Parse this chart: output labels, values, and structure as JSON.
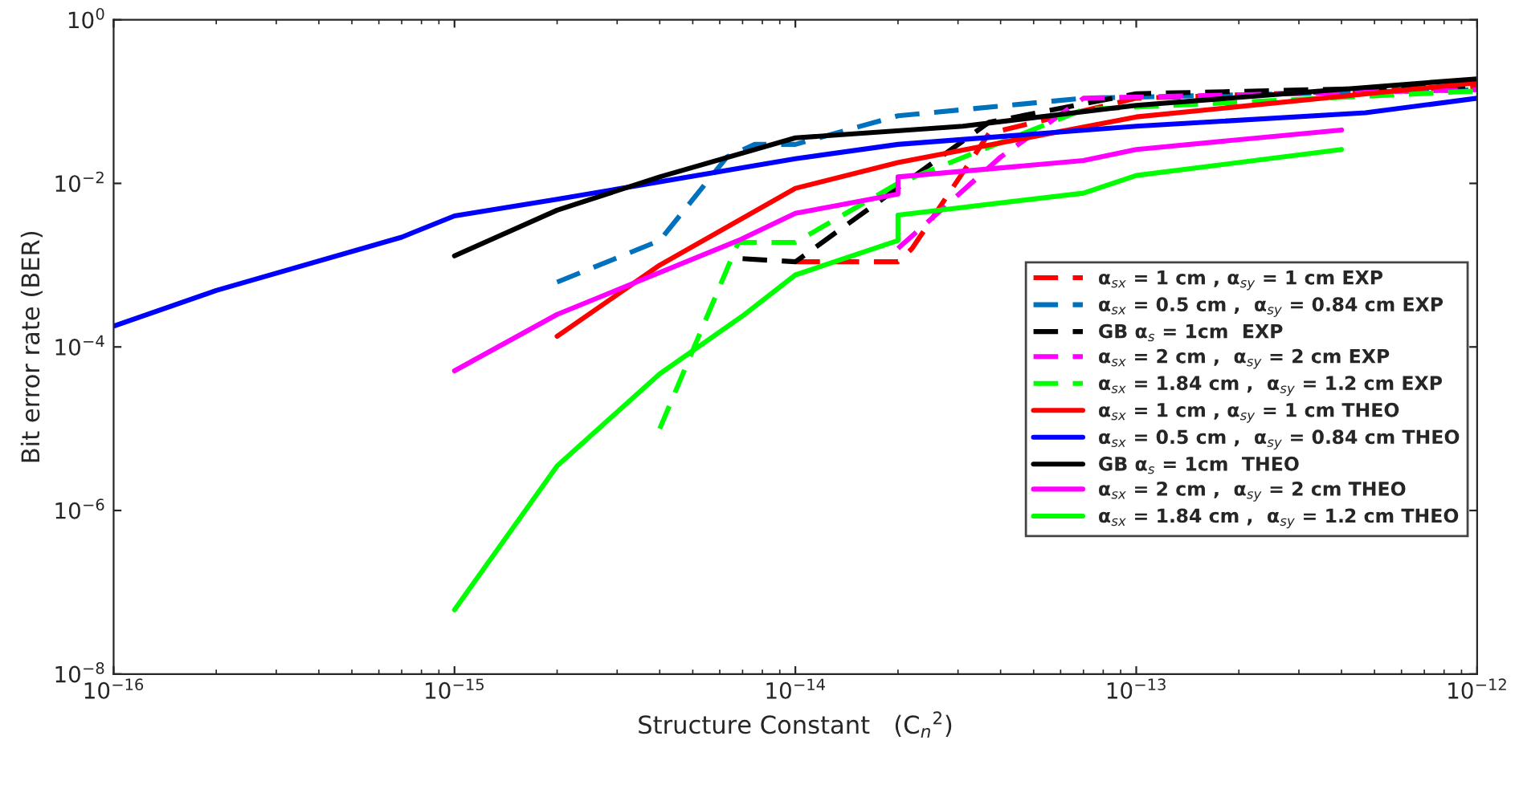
{
  "chart_data": {
    "type": "line",
    "xlabel": "Structure Constant   (C$_{n}$$^{2}$)",
    "ylabel": "Bit error rate (BER)",
    "log": "xy",
    "grid": false,
    "legend": "right",
    "marker": "none",
    "xlim": [
      1e-16,
      1e-12
    ],
    "ylim": [
      1e-08,
      1
    ],
    "xticks": [
      {
        "value": 1e-16,
        "label": "10$^{−16}$"
      },
      {
        "value": 1e-15,
        "label": "10$^{−15}$"
      },
      {
        "value": 1e-14,
        "label": "10$^{−14}$"
      },
      {
        "value": 1e-13,
        "label": "10$^{−13}$"
      },
      {
        "value": 1e-12,
        "label": "10$^{−12}$"
      }
    ],
    "yticks": [
      {
        "value": 1e-08,
        "label": "10$^{−8}$"
      },
      {
        "value": 1e-06,
        "label": "10$^{−6}$"
      },
      {
        "value": 0.0001,
        "label": "10$^{−4}$"
      },
      {
        "value": 0.01,
        "label": "10$^{−2}$"
      },
      {
        "value": 1,
        "label": "10$^{0}$"
      }
    ],
    "series": [
      {
        "name": "α$_{sx}$ = 1 cm , α$_{sy}$ = 1 cm EXP",
        "color": "#ff0000",
        "line_style": "dashed",
        "x": [
          1e-14,
          2e-14,
          2.2e-14,
          3.7e-14,
          1e-13,
          1e-12
        ],
        "values": [
          0.0011,
          0.0011,
          0.0016,
          0.041,
          0.11,
          0.15
        ]
      },
      {
        "name": "α$_{sx}$ = 0.5 cm ,  α$_{sy}$ = 0.84 cm EXP",
        "color": "#0072bd",
        "line_style": "dashed",
        "x": [
          2e-15,
          4e-15,
          6.3e-15,
          7.6e-15,
          1e-14,
          2e-14,
          7e-14,
          1e-12
        ],
        "values": [
          0.00062,
          0.002,
          0.021,
          0.03,
          0.03,
          0.067,
          0.11,
          0.14
        ]
      },
      {
        "name": "GB α$_{s}$ = 1cm  EXP",
        "color": "#000000",
        "line_style": "dashed",
        "x": [
          7e-15,
          1e-14,
          3.7e-14,
          1e-13,
          1e-12
        ],
        "values": [
          0.0012,
          0.0011,
          0.056,
          0.125,
          0.155
        ]
      },
      {
        "name": "α$_{sx}$ = 2 cm ,  α$_{sy}$ = 2 cm EXP",
        "color": "#ff00ff",
        "line_style": "dashed",
        "x": [
          2e-14,
          4e-14,
          7e-14,
          1e-12
        ],
        "values": [
          0.0016,
          0.021,
          0.11,
          0.14
        ]
      },
      {
        "name": "α$_{sx}$ = 1.84 cm ,  α$_{sy}$ = 1.2 cm EXP",
        "color": "#00ff00",
        "line_style": "dashed",
        "x": [
          4e-15,
          6.8e-15,
          1e-14,
          2e-14,
          7e-14,
          1e-12
        ],
        "values": [
          1e-05,
          0.0019,
          0.0019,
          0.01,
          0.08,
          0.135
        ]
      },
      {
        "name": "α$_{sx}$ = 1 cm , α$_{sy}$ = 1 cm THEO",
        "color": "#ff0000",
        "line_style": "solid",
        "x": [
          2e-15,
          4e-15,
          1e-14,
          2e-14,
          1e-13,
          1e-12
        ],
        "values": [
          0.000135,
          0.001,
          0.0087,
          0.018,
          0.065,
          0.17
        ]
      },
      {
        "name": "α$_{sx}$ = 0.5 cm ,  α$_{sy}$ = 0.84 cm THEO",
        "color": "#0000ff",
        "line_style": "solid",
        "x": [
          1e-16,
          2e-16,
          7e-16,
          1e-15,
          2e-15,
          1e-14,
          2e-14,
          1e-13,
          4.7e-13,
          1e-12
        ],
        "values": [
          0.00018,
          0.00049,
          0.0022,
          0.004,
          0.0064,
          0.02,
          0.03,
          0.05,
          0.073,
          0.11
        ]
      },
      {
        "name": "GB α$_{s}$ = 1cm  THEO",
        "color": "#000000",
        "line_style": "solid",
        "x": [
          1e-15,
          2e-15,
          4e-15,
          1e-14,
          3.1e-14,
          1e-13,
          1e-12
        ],
        "values": [
          0.0013,
          0.0047,
          0.012,
          0.036,
          0.05,
          0.09,
          0.19
        ]
      },
      {
        "name": "α$_{sx}$ = 2 cm ,  α$_{sy}$ = 2 cm THEO",
        "color": "#ff00ff",
        "line_style": "solid",
        "x": [
          1e-15,
          2e-15,
          6.8e-15,
          1e-14,
          2e-14,
          2e-14,
          7e-14,
          1e-13,
          4e-13
        ],
        "values": [
          5.1e-05,
          0.00025,
          0.002,
          0.0043,
          0.0074,
          0.012,
          0.019,
          0.026,
          0.045
        ]
      },
      {
        "name": "α$_{sx}$ = 1.84 cm ,  α$_{sy}$ = 1.2 cm THEO",
        "color": "#00ff00",
        "line_style": "solid",
        "x": [
          1e-15,
          2e-15,
          4e-15,
          7.1e-15,
          1e-14,
          2e-14,
          2e-14,
          7e-14,
          1e-13,
          4e-13
        ],
        "values": [
          6.1e-08,
          3.5e-06,
          4.7e-05,
          0.00025,
          0.00076,
          0.002,
          0.0041,
          0.0076,
          0.0125,
          0.026
        ]
      }
    ]
  }
}
